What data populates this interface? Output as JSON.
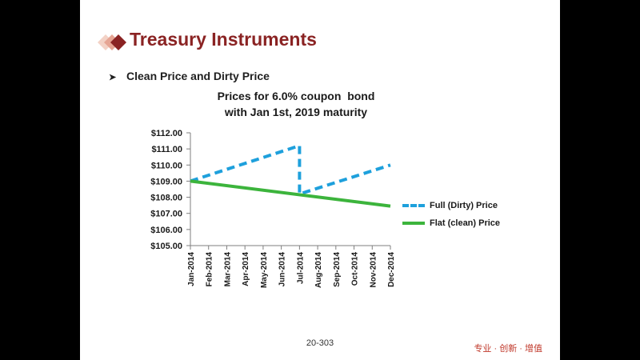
{
  "slide": {
    "title": "Treasury Instruments",
    "bullet": "Clean Price and Dirty Price",
    "page_number": "20-303",
    "footer_brand": "专业 · 创新 · 增值",
    "accent_color": "#8a2323"
  },
  "chart_data": {
    "type": "line",
    "title_lines": [
      "Prices for 6.0% coupon  bond",
      "with Jan 1st, 2019 maturity"
    ],
    "xlabel": "",
    "ylabel": "",
    "categories": [
      "Jan-2014",
      "Feb-2014",
      "Mar-2014",
      "Apr-2014",
      "May-2014",
      "Jun-2014",
      "Jul-2014",
      "Aug-2014",
      "Sep-2014",
      "Oct-2014",
      "Nov-2014",
      "Dec-2014"
    ],
    "y_ticks": [
      "$112.00",
      "$111.00",
      "$110.00",
      "$109.00",
      "$108.00",
      "$107.00",
      "$106.00",
      "$105.00"
    ],
    "ylim": [
      105,
      112
    ],
    "grid": false,
    "legend_position": "right",
    "series": [
      {
        "name": "Full (Dirty) Price",
        "style": "dashed",
        "color": "#1ea0dc",
        "points": [
          [
            0,
            109.0
          ],
          [
            6,
            111.2
          ],
          [
            6,
            108.2
          ],
          [
            11,
            110.0
          ]
        ]
      },
      {
        "name": "Flat (clean) Price",
        "style": "solid",
        "color": "#3cb43c",
        "points": [
          [
            0,
            109.0
          ],
          [
            11,
            107.45
          ]
        ]
      }
    ]
  }
}
